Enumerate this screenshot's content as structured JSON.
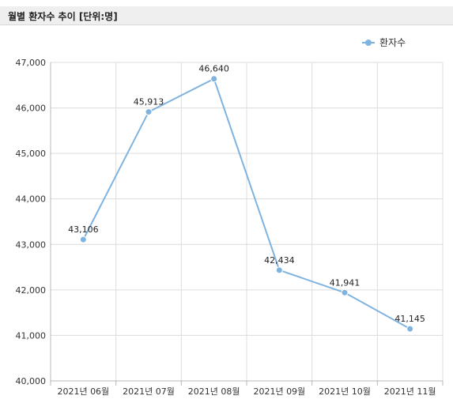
{
  "panel": {
    "title": "월별 환자수 추이 [단위:명]"
  },
  "chart_data": {
    "type": "line",
    "categories": [
      "2021년 06월",
      "2021년 07월",
      "2021년 08월",
      "2021년 09월",
      "2021년 10월",
      "2021년 11월"
    ],
    "series": [
      {
        "name": "환자수",
        "values": [
          43106,
          45913,
          46640,
          42434,
          41941,
          41145
        ],
        "color": "#7fb3e0"
      }
    ],
    "data_labels": [
      "43,106",
      "45,913",
      "46,640",
      "42,434",
      "41,941",
      "41,145"
    ],
    "ylim": [
      40000,
      47000
    ],
    "yticks": [
      40000,
      41000,
      42000,
      43000,
      44000,
      45000,
      46000,
      47000
    ],
    "ytick_labels": [
      "40,000",
      "41,000",
      "42,000",
      "43,000",
      "44,000",
      "45,000",
      "46,000",
      "47,000"
    ],
    "legend": "top-right",
    "grid": true
  }
}
